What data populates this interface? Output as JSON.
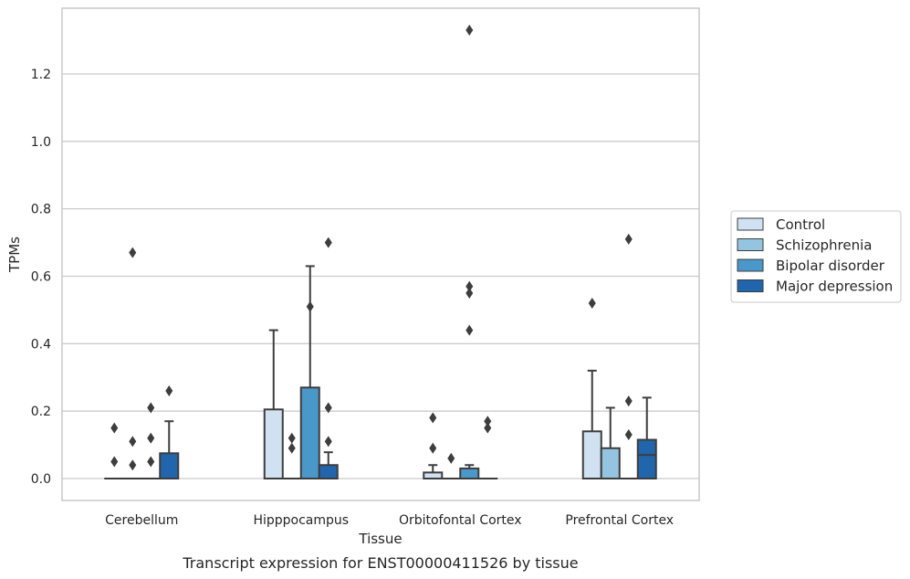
{
  "chart_data": {
    "type": "box",
    "title": "",
    "caption": "Transcript expression for ENST00000411526 by tissue",
    "xlabel": "Tissue",
    "ylabel": "TPMs",
    "categories": [
      "Cerebellum",
      "Hipppocampus",
      "Orbitofontal Cortex",
      "Prefrontal Cortex"
    ],
    "ylim": [
      -0.065,
      1.395
    ],
    "yticks": [
      0.0,
      0.2,
      0.4,
      0.6,
      0.8,
      1.0,
      1.2
    ],
    "ytick_labels": [
      "0.0",
      "0.2",
      "0.4",
      "0.6",
      "0.8",
      "1.0",
      "1.2"
    ],
    "grid": "horizontal",
    "legend_position": "right",
    "series": [
      {
        "name": "Control",
        "color": "#d0e1f2",
        "boxes": [
          {
            "q1": 0,
            "median": 0,
            "q3": 0,
            "whisker_low": 0,
            "whisker_high": 0,
            "outliers": [
              0.15,
              0.05
            ]
          },
          {
            "q1": 0,
            "median": 0,
            "q3": 0.205,
            "whisker_low": 0,
            "whisker_high": 0.44,
            "outliers": []
          },
          {
            "q1": 0,
            "median": 0,
            "q3": 0.018,
            "whisker_low": 0,
            "whisker_high": 0.04,
            "outliers": [
              0.18,
              0.09
            ]
          },
          {
            "q1": 0,
            "median": 0,
            "q3": 0.14,
            "whisker_low": 0,
            "whisker_high": 0.32,
            "outliers": [
              0.52
            ]
          }
        ]
      },
      {
        "name": "Schizophrenia",
        "color": "#94c4df",
        "boxes": [
          {
            "q1": 0,
            "median": 0,
            "q3": 0,
            "whisker_low": 0,
            "whisker_high": 0,
            "outliers": [
              0.67,
              0.11,
              0.04
            ]
          },
          {
            "q1": 0,
            "median": 0,
            "q3": 0,
            "whisker_low": 0,
            "whisker_high": 0,
            "outliers": [
              0.12,
              0.09
            ]
          },
          {
            "q1": 0,
            "median": 0,
            "q3": 0,
            "whisker_low": 0,
            "whisker_high": 0,
            "outliers": [
              0.06
            ]
          },
          {
            "q1": 0,
            "median": 0,
            "q3": 0.09,
            "whisker_low": 0,
            "whisker_high": 0.21,
            "outliers": []
          }
        ]
      },
      {
        "name": "Bipolar disorder",
        "color": "#4a98c9",
        "boxes": [
          {
            "q1": 0,
            "median": 0,
            "q3": 0,
            "whisker_low": 0,
            "whisker_high": 0,
            "outliers": [
              0.21,
              0.12,
              0.05
            ]
          },
          {
            "q1": 0,
            "median": 0,
            "q3": 0.27,
            "whisker_low": 0,
            "whisker_high": 0.63,
            "outliers": [
              0.51
            ]
          },
          {
            "q1": 0,
            "median": 0,
            "q3": 0.03,
            "whisker_low": 0,
            "whisker_high": 0.04,
            "outliers": [
              1.33,
              0.57,
              0.55,
              0.44
            ]
          },
          {
            "q1": 0,
            "median": 0,
            "q3": 0,
            "whisker_low": 0,
            "whisker_high": 0,
            "outliers": [
              0.71,
              0.23,
              0.13
            ]
          }
        ]
      },
      {
        "name": "Major depression",
        "color": "#2166ac",
        "boxes": [
          {
            "q1": 0,
            "median": 0,
            "q3": 0.075,
            "whisker_low": 0,
            "whisker_high": 0.17,
            "outliers": [
              0.26
            ]
          },
          {
            "q1": 0,
            "median": 0,
            "q3": 0.04,
            "whisker_low": 0,
            "whisker_high": 0.078,
            "outliers": [
              0.7,
              0.21,
              0.11
            ]
          },
          {
            "q1": 0,
            "median": 0,
            "q3": 0,
            "whisker_low": 0,
            "whisker_high": 0,
            "outliers": [
              0.17,
              0.15
            ]
          },
          {
            "q1": 0,
            "median": 0.07,
            "q3": 0.115,
            "whisker_low": 0,
            "whisker_high": 0.24,
            "outliers": []
          }
        ]
      }
    ]
  },
  "colors": {
    "box_edge": "#3d3d3d",
    "grid": "#cccccc",
    "frame": "#c8c8c8",
    "text": "#262626"
  }
}
